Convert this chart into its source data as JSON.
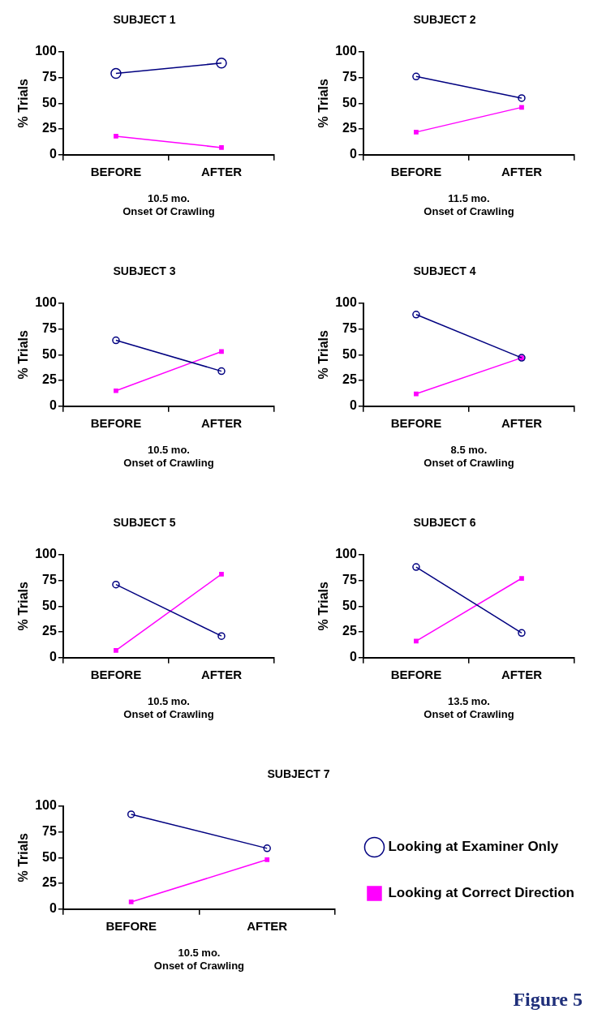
{
  "chart_data": [
    {
      "type": "line",
      "title": "SUBJECT 1",
      "xlabel": "10.5 mo.\nOnset Of Crawling",
      "ylabel": "% Trials",
      "categories": [
        "BEFORE",
        "AFTER"
      ],
      "ylim": [
        0,
        100
      ],
      "yticks": [
        0,
        25,
        50,
        75,
        100
      ],
      "grid": false,
      "legend": false,
      "series": [
        {
          "color": "#000080",
          "marker": "circle",
          "values": [
            79,
            89
          ]
        },
        {
          "color": "#ff00ff",
          "marker": "square",
          "values": [
            18,
            7
          ]
        }
      ]
    },
    {
      "type": "line",
      "title": "SUBJECT 2",
      "xlabel": "11.5 mo.\nOnset of Crawling",
      "ylabel": "% Trials",
      "categories": [
        "BEFORE",
        "AFTER"
      ],
      "ylim": [
        0,
        100
      ],
      "yticks": [
        0,
        25,
        50,
        75,
        100
      ],
      "grid": false,
      "legend": false,
      "series": [
        {
          "color": "#000080",
          "marker": "circle",
          "values": [
            76,
            55
          ]
        },
        {
          "color": "#ff00ff",
          "marker": "square",
          "values": [
            22,
            46
          ]
        }
      ]
    },
    {
      "type": "line",
      "title": "SUBJECT 3",
      "xlabel": "10.5 mo.\nOnset of Crawling",
      "ylabel": "% Trials",
      "categories": [
        "BEFORE",
        "AFTER"
      ],
      "ylim": [
        0,
        100
      ],
      "yticks": [
        0,
        25,
        50,
        75,
        100
      ],
      "grid": false,
      "legend": false,
      "series": [
        {
          "color": "#000080",
          "marker": "circle",
          "values": [
            64,
            34
          ]
        },
        {
          "color": "#ff00ff",
          "marker": "square",
          "values": [
            15,
            53
          ]
        }
      ]
    },
    {
      "type": "line",
      "title": "SUBJECT 4",
      "xlabel": "8.5 mo.\nOnset of Crawling",
      "ylabel": "% Trials",
      "categories": [
        "BEFORE",
        "AFTER"
      ],
      "ylim": [
        0,
        100
      ],
      "yticks": [
        0,
        25,
        50,
        75,
        100
      ],
      "grid": false,
      "legend": false,
      "series": [
        {
          "color": "#000080",
          "marker": "circle",
          "values": [
            89,
            47
          ]
        },
        {
          "color": "#ff00ff",
          "marker": "square",
          "values": [
            12,
            47
          ]
        }
      ]
    },
    {
      "type": "line",
      "title": "SUBJECT 5",
      "xlabel": "10.5 mo.\nOnset of Crawling",
      "ylabel": "% Trials",
      "categories": [
        "BEFORE",
        "AFTER"
      ],
      "ylim": [
        0,
        100
      ],
      "yticks": [
        0,
        25,
        50,
        75,
        100
      ],
      "grid": false,
      "legend": false,
      "series": [
        {
          "color": "#000080",
          "marker": "circle",
          "values": [
            71,
            21
          ]
        },
        {
          "color": "#ff00ff",
          "marker": "square",
          "values": [
            7,
            81
          ]
        }
      ]
    },
    {
      "type": "line",
      "title": "SUBJECT 6",
      "xlabel": "13.5 mo.\nOnset of Crawling",
      "ylabel": "% Trials",
      "categories": [
        "BEFORE",
        "AFTER"
      ],
      "ylim": [
        0,
        100
      ],
      "yticks": [
        0,
        25,
        50,
        75,
        100
      ],
      "grid": false,
      "legend": false,
      "series": [
        {
          "color": "#000080",
          "marker": "circle",
          "values": [
            88,
            24
          ]
        },
        {
          "color": "#ff00ff",
          "marker": "square",
          "values": [
            16,
            77
          ]
        }
      ]
    },
    {
      "type": "line",
      "title": "SUBJECT 7",
      "xlabel": "10.5 mo.\nOnset of Crawling",
      "ylabel": "% Trials",
      "categories": [
        "BEFORE",
        "AFTER"
      ],
      "ylim": [
        0,
        100
      ],
      "yticks": [
        0,
        25,
        50,
        75,
        100
      ],
      "grid": false,
      "legend": "right",
      "annotations": [
        "Figure 5"
      ],
      "series": [
        {
          "name": "Looking at Examiner Only",
          "color": "#000080",
          "marker": "circle",
          "values": [
            92,
            59
          ]
        },
        {
          "name": "Looking at Correct Direction",
          "color": "#ff00ff",
          "marker": "square",
          "values": [
            7,
            48
          ]
        }
      ]
    }
  ]
}
